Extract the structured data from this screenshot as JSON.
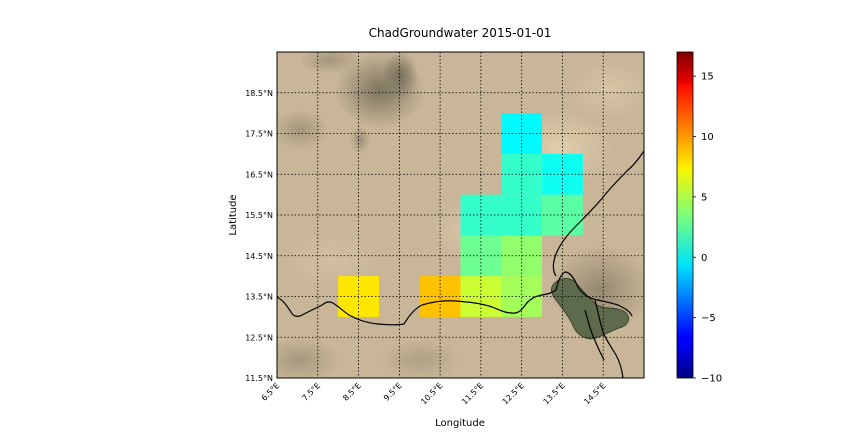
{
  "title": "ChadGroundwater 2015-01-01",
  "xlabel": "Longitude",
  "ylabel": "Latitude",
  "map": {
    "lon_range": [
      6.5,
      15.5
    ],
    "lat_range": [
      11.5,
      19.5
    ],
    "x_ticks": [
      "6.5°E",
      "7.5°E",
      "8.5°E",
      "9.5°E",
      "10.5°E",
      "11.5°E",
      "12.5°E",
      "13.5°E",
      "14.5°E"
    ],
    "y_ticks": [
      "11.5°N",
      "12.5°N",
      "13.5°N",
      "14.5°N",
      "15.5°N",
      "16.5°N",
      "17.5°N",
      "18.5°N"
    ],
    "gridlines": "dotted",
    "basemap": "satellite imagery (desert)"
  },
  "colorbar": {
    "colormap": "jet",
    "range": [
      -10,
      17
    ],
    "ticks": [
      "−10",
      "−5",
      "0",
      "5",
      "10",
      "15"
    ],
    "tick_values": [
      -10,
      -5,
      0,
      5,
      10,
      15
    ]
  },
  "chart_data": {
    "type": "heatmap",
    "title": "ChadGroundwater 2015-01-01",
    "xlabel": "Longitude",
    "ylabel": "Latitude",
    "cell_size_deg": 1,
    "cells": [
      {
        "lon": 8.0,
        "lat": 13.0,
        "value": 7.5
      },
      {
        "lon": 10.0,
        "lat": 13.0,
        "value": 8.5
      },
      {
        "lon": 11.0,
        "lat": 13.0,
        "value": 5.5
      },
      {
        "lon": 11.0,
        "lat": 14.0,
        "value": 3.0
      },
      {
        "lon": 11.0,
        "lat": 15.0,
        "value": 1.5
      },
      {
        "lon": 12.0,
        "lat": 13.0,
        "value": 4.5
      },
      {
        "lon": 12.0,
        "lat": 14.0,
        "value": 4.0
      },
      {
        "lon": 12.0,
        "lat": 15.0,
        "value": 1.5
      },
      {
        "lon": 12.0,
        "lat": 16.0,
        "value": 1.5
      },
      {
        "lon": 12.0,
        "lat": 17.0,
        "value": 0.0
      },
      {
        "lon": 13.0,
        "lat": 15.0,
        "value": 2.5
      },
      {
        "lon": 13.0,
        "lat": 16.0,
        "value": 0.5
      }
    ]
  }
}
